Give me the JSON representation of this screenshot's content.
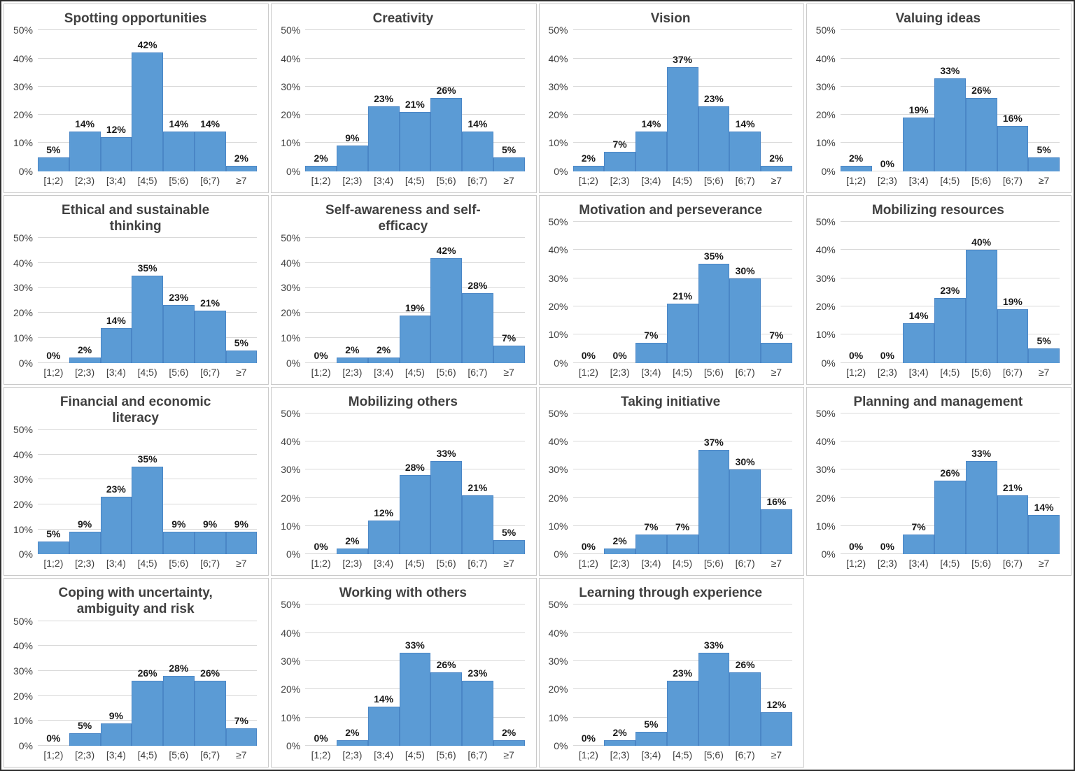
{
  "style": {
    "outer_border": "#2e2e2e",
    "panel_border": "#c9c9c9",
    "title_color": "#404040",
    "axis_text": "#404040",
    "data_label": "#1a1a1a",
    "gridline": "#d9d9d9",
    "bar_fill": "#5b9bd5",
    "bar_border": "#4a86c6"
  },
  "chart_data": {
    "layout": "4x4-grid-last-cell-empty",
    "shared": {
      "type": "bar",
      "categories": [
        "[1;2)",
        "[2;3)",
        "[3;4)",
        "[4;5)",
        "[5;6)",
        "[6;7)",
        "≥7"
      ],
      "ylim": [
        0,
        50
      ],
      "yticks": [
        0,
        10,
        20,
        30,
        40,
        50
      ],
      "value_suffix": "%",
      "grid": true,
      "data_labels": true,
      "legend": "none",
      "bar_style": "contiguous-histogram"
    },
    "charts": [
      {
        "title": "Spotting opportunities",
        "values": [
          5,
          14,
          12,
          42,
          14,
          14,
          2
        ]
      },
      {
        "title": "Creativity",
        "values": [
          2,
          9,
          23,
          21,
          26,
          14,
          5
        ]
      },
      {
        "title": "Vision",
        "values": [
          2,
          7,
          14,
          37,
          23,
          14,
          2
        ]
      },
      {
        "title": "Valuing ideas",
        "values": [
          2,
          0,
          19,
          33,
          26,
          16,
          5
        ]
      },
      {
        "title": "Ethical and sustainable\nthinking",
        "values": [
          0,
          2,
          14,
          35,
          23,
          21,
          5
        ]
      },
      {
        "title": "Self-awareness and self-\nefficacy",
        "values": [
          0,
          2,
          2,
          19,
          42,
          28,
          7
        ]
      },
      {
        "title": "Motivation and perseverance",
        "values": [
          0,
          0,
          7,
          21,
          35,
          30,
          7
        ]
      },
      {
        "title": "Mobilizing resources",
        "values": [
          0,
          0,
          14,
          23,
          40,
          19,
          5
        ]
      },
      {
        "title": "Financial and economic\nliteracy",
        "values": [
          5,
          9,
          23,
          35,
          9,
          9,
          9
        ]
      },
      {
        "title": "Mobilizing others",
        "values": [
          0,
          2,
          12,
          28,
          33,
          21,
          5
        ]
      },
      {
        "title": "Taking initiative",
        "values": [
          0,
          2,
          7,
          7,
          37,
          30,
          16
        ]
      },
      {
        "title": "Planning and management",
        "values": [
          0,
          0,
          7,
          26,
          33,
          21,
          14
        ]
      },
      {
        "title": "Coping with uncertainty,\nambiguity and risk",
        "values": [
          0,
          5,
          9,
          26,
          28,
          26,
          7
        ]
      },
      {
        "title": "Working with others",
        "values": [
          0,
          2,
          14,
          33,
          26,
          23,
          2
        ]
      },
      {
        "title": "Learning through experience",
        "values": [
          0,
          2,
          5,
          23,
          33,
          26,
          12
        ]
      }
    ]
  }
}
